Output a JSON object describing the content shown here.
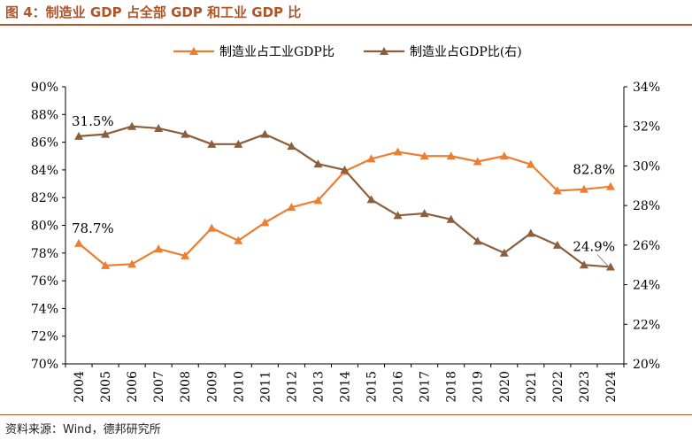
{
  "figure_title": "图 4：制造业 GDP 占全部 GDP 和工业 GDP 比",
  "source": "资料来源：Wind，德邦研究所",
  "colors": {
    "accent": "#b0552a",
    "series1": "#ed7d31",
    "series2": "#8b5e3c"
  },
  "chart_data": {
    "type": "line",
    "title": "",
    "x": [
      "2004",
      "2005",
      "2006",
      "2007",
      "2008",
      "2009",
      "2010",
      "2011",
      "2012",
      "2013",
      "2014",
      "2015",
      "2016",
      "2017",
      "2018",
      "2019",
      "2020",
      "2021",
      "2022",
      "2023",
      "2024"
    ],
    "series": [
      {
        "name": "制造业占工业GDP比",
        "axis": "left",
        "marker": "triangle",
        "values": [
          78.7,
          77.1,
          77.2,
          78.3,
          77.8,
          79.8,
          78.9,
          80.2,
          81.3,
          81.8,
          83.9,
          84.8,
          85.3,
          85.0,
          85.0,
          84.6,
          85.0,
          84.4,
          82.5,
          82.6,
          82.8
        ]
      },
      {
        "name": "制造业占GDP比(右)",
        "axis": "right",
        "marker": "triangle",
        "values": [
          31.5,
          31.6,
          32.0,
          31.9,
          31.6,
          31.1,
          31.1,
          31.6,
          31.0,
          30.1,
          29.8,
          28.3,
          27.5,
          27.6,
          27.3,
          26.2,
          25.6,
          26.6,
          26.0,
          25.0,
          24.9
        ]
      }
    ],
    "yticks_left": [
      "70%",
      "72%",
      "74%",
      "76%",
      "78%",
      "80%",
      "82%",
      "84%",
      "86%",
      "88%",
      "90%"
    ],
    "yticks_right": [
      "20%",
      "22%",
      "24%",
      "26%",
      "28%",
      "30%",
      "32%",
      "34%"
    ],
    "ylim_left": [
      70,
      90
    ],
    "ylim_right": [
      20,
      34
    ],
    "annotations": [
      {
        "series": 0,
        "index": 0,
        "text": "78.7%"
      },
      {
        "series": 0,
        "index": 20,
        "text": "82.8%"
      },
      {
        "series": 1,
        "index": 0,
        "text": "31.5%"
      },
      {
        "series": 1,
        "index": 20,
        "text": "24.9%"
      }
    ],
    "legend_position": "top-center",
    "grid": false
  }
}
